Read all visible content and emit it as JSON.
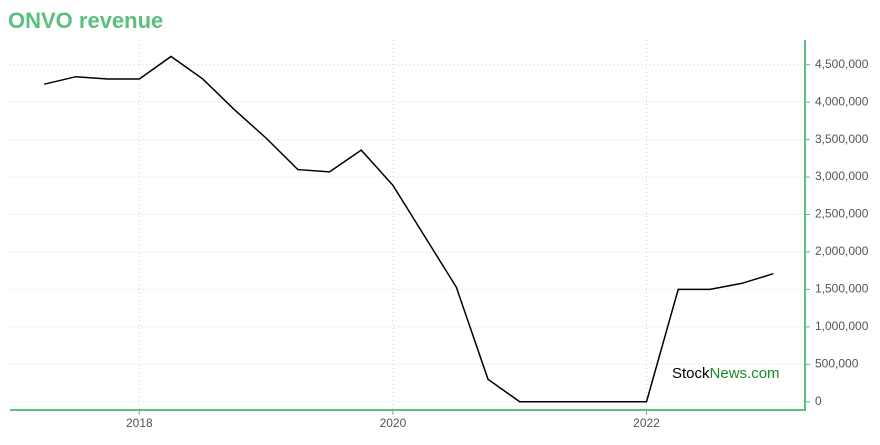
{
  "chart_data": {
    "type": "line",
    "title": "ONVO revenue",
    "x": [
      2017.25,
      2017.5,
      2017.75,
      2018.0,
      2018.25,
      2018.5,
      2018.75,
      2019.0,
      2019.25,
      2019.5,
      2019.75,
      2020.0,
      2020.25,
      2020.5,
      2020.75,
      2021.0,
      2021.25,
      2021.5,
      2021.75,
      2022.0,
      2022.25,
      2022.5,
      2022.75,
      2023.0
    ],
    "series": [
      {
        "name": "ONVO",
        "color": "#000000",
        "values": [
          4240000,
          4340000,
          4310000,
          4310000,
          4610000,
          4310000,
          3900000,
          3520000,
          3100000,
          3070000,
          3360000,
          2890000,
          2210000,
          1530000,
          300000,
          0,
          0,
          0,
          0,
          0,
          1500000,
          1500000,
          1580000,
          1710000
        ]
      }
    ],
    "xlim": [
      2016.98,
      2023.25
    ],
    "xticks": [
      2018,
      2020,
      2022
    ],
    "ylim": [
      -110000,
      4830000
    ],
    "yticks": [
      0,
      {
        "value": 500000,
        "label": "500,000"
      },
      {
        "value": 1000000,
        "label": "1,000,000"
      },
      {
        "value": 1500000,
        "label": "1,500,000"
      },
      {
        "value": 2000000,
        "label": "2,000,000"
      },
      {
        "value": 2500000,
        "label": "2,500,000"
      },
      {
        "value": 3000000,
        "label": "3,000,000"
      },
      {
        "value": 3500000,
        "label": "3,500,000"
      },
      {
        "value": 4000000,
        "label": "4,000,000"
      },
      {
        "value": 4500000,
        "label": "4,500,000"
      }
    ],
    "grid": true,
    "axis_color": "#5cbf7d"
  },
  "watermark": {
    "stock": "Stock",
    "news": "News",
    "com": ".com"
  }
}
